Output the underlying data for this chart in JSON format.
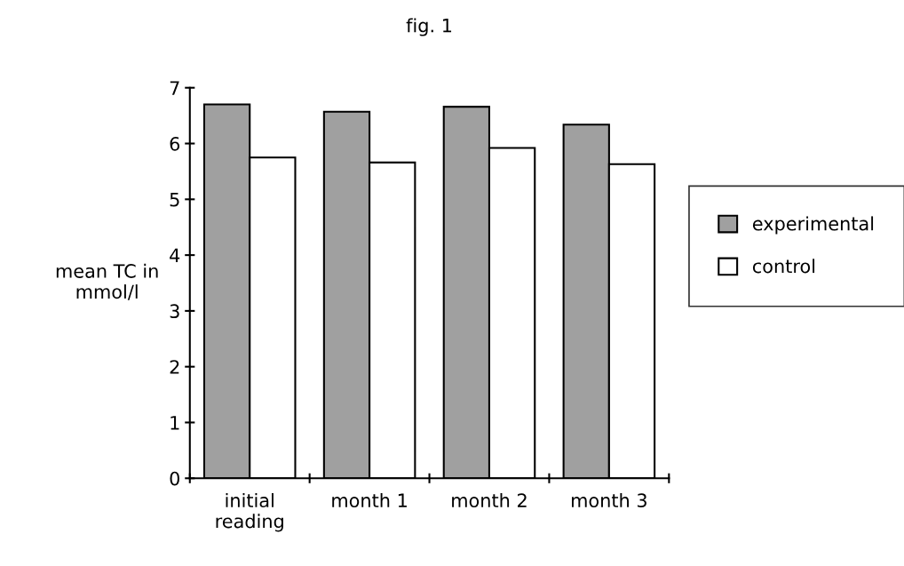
{
  "chart_data": {
    "type": "bar",
    "title": "fig. 1",
    "ylabel": "mean TC in\nmmol/l",
    "categories": [
      "initial\nreading",
      "month 1",
      "month 2",
      "month 3"
    ],
    "series": [
      {
        "name": "experimental",
        "color": "#a0a0a0",
        "values": [
          6.7,
          6.57,
          6.66,
          6.34
        ]
      },
      {
        "name": "control",
        "color": "#ffffff",
        "values": [
          5.75,
          5.66,
          5.92,
          5.63
        ]
      }
    ],
    "ylim": [
      0,
      7
    ],
    "yticks": [
      0,
      1,
      2,
      3,
      4,
      5,
      6,
      7
    ],
    "grid": false,
    "legend": "right"
  }
}
